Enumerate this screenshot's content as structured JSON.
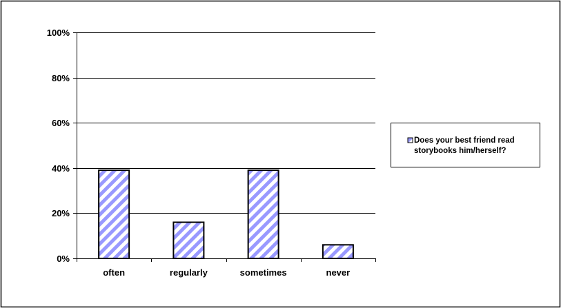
{
  "chart_data": {
    "type": "bar",
    "categories": [
      "often",
      "regularly",
      "sometimes",
      "never"
    ],
    "series": [
      {
        "name": "Does your best friend read storybooks him/herself?",
        "values": [
          39,
          16,
          39,
          6
        ]
      }
    ],
    "ylim": [
      0,
      100
    ],
    "yticks": [
      0,
      20,
      40,
      60,
      80,
      100
    ],
    "ytick_labels": [
      "0%",
      "20%",
      "40%",
      "60%",
      "80%",
      "100%"
    ],
    "grid": true,
    "legend_position": "right",
    "legend_lines": [
      "Does your best friend read",
      "storybooks him/herself?"
    ],
    "title": "",
    "xlabel": "",
    "ylabel": "",
    "colors": {
      "bar_fill": "#ffffff",
      "bar_stripe": "#9999ff",
      "bar_outline": "#000000",
      "gridline": "#000000"
    }
  }
}
